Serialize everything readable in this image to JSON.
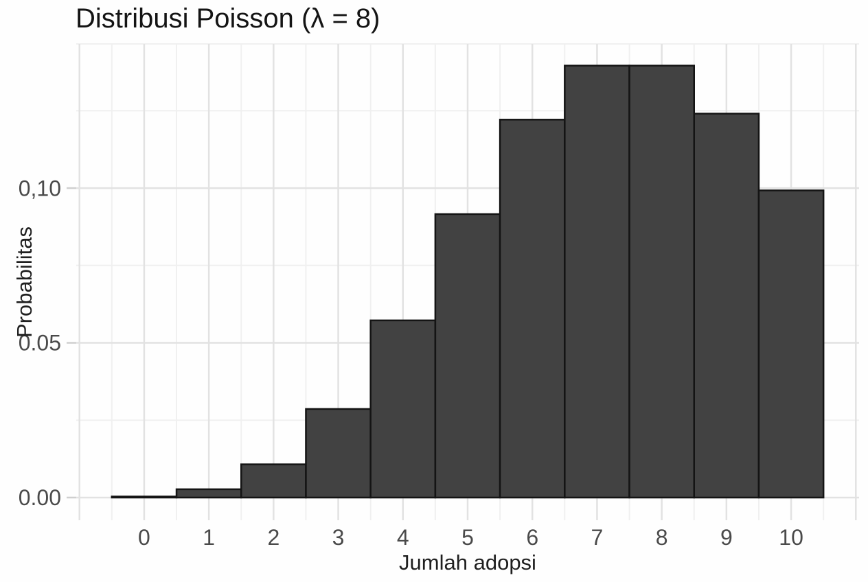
{
  "chart_data": {
    "type": "bar",
    "title": "Distribusi Poisson (λ = 8)",
    "xlabel": "Jumlah adopsi",
    "ylabel": "Probabilitas",
    "categories": [
      0,
      1,
      2,
      3,
      4,
      5,
      6,
      7,
      8,
      9,
      10
    ],
    "values": [
      0.000335,
      0.002684,
      0.010735,
      0.028626,
      0.057252,
      0.091604,
      0.122138,
      0.139587,
      0.139587,
      0.124077,
      0.099262
    ],
    "bar_width": 1,
    "y_ticks": [
      {
        "value": 0.0,
        "label": "0.00"
      },
      {
        "value": 0.05,
        "label": "0.05"
      },
      {
        "value": 0.1,
        "label": "0,10"
      }
    ],
    "y_minor": [
      0.025,
      0.075,
      0.125
    ],
    "x_major": [
      -1,
      0,
      1,
      2,
      3,
      4,
      5,
      6,
      7,
      8,
      9,
      10,
      11
    ],
    "x_minor": [
      -0.5,
      0.5,
      1.5,
      2.5,
      3.5,
      4.5,
      5.5,
      6.5,
      7.5,
      8.5,
      9.5,
      10.5
    ],
    "xlim": [
      -1.05,
      11.05
    ],
    "ylim": [
      -0.00733,
      0.1466
    ],
    "grid": true,
    "legend": "none",
    "colors": {
      "bar_fill": "#424242",
      "bar_stroke": "#141414",
      "grid_major": "#e2e2e2",
      "grid_minor": "#f0f0f0",
      "axis_tick": "#cfcfcf",
      "tick_label": "#4a4a4a",
      "axis_title": "#1f1f1f",
      "title": "#141414",
      "background": "#fefefe"
    }
  }
}
